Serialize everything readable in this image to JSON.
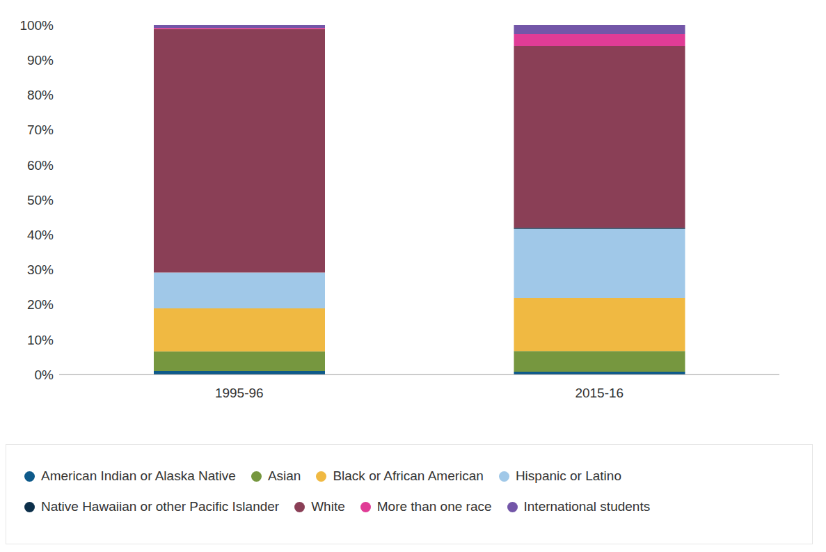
{
  "chart_data": {
    "type": "bar",
    "stacked": true,
    "grid": false,
    "legend": "bottom",
    "categories": [
      "1995-96",
      "2015-16"
    ],
    "ylim": [
      0,
      100
    ],
    "yticks": [
      {
        "value": 0,
        "label": "0%"
      },
      {
        "value": 10,
        "label": "10%"
      },
      {
        "value": 20,
        "label": "20%"
      },
      {
        "value": 30,
        "label": "30%"
      },
      {
        "value": 40,
        "label": "40%"
      },
      {
        "value": 50,
        "label": "50%"
      },
      {
        "value": 60,
        "label": "60%"
      },
      {
        "value": 70,
        "label": "70%"
      },
      {
        "value": 80,
        "label": "80%"
      },
      {
        "value": 90,
        "label": "90%"
      },
      {
        "value": 100,
        "label": "100%"
      }
    ],
    "series": [
      {
        "name": "American Indian or Alaska Native",
        "color": "#0e5a8a",
        "values": [
          1.0,
          0.8
        ]
      },
      {
        "name": "Asian",
        "color": "#76973f",
        "values": [
          5.6,
          5.9
        ]
      },
      {
        "name": "Black or African American",
        "color": "#f0b942",
        "values": [
          12.3,
          15.2
        ]
      },
      {
        "name": "Hispanic or Latino",
        "color": "#a0c8e8",
        "values": [
          10.3,
          19.8
        ]
      },
      {
        "name": "Native Hawaiian or other Pacific Islander",
        "color": "#0c2f4a",
        "values": [
          0,
          0.3
        ]
      },
      {
        "name": "White",
        "color": "#8a3f56",
        "values": [
          69.7,
          52.0
        ]
      },
      {
        "name": "More than one race",
        "color": "#e03c96",
        "values": [
          0.3,
          3.4
        ]
      },
      {
        "name": "International students",
        "color": "#7356a8",
        "values": [
          0.8,
          2.6
        ]
      }
    ]
  }
}
